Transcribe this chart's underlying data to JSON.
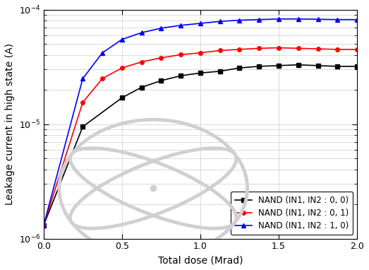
{
  "title": "",
  "xlabel": "Total dose (Mrad)",
  "ylabel": "Leakage current in high state (A)",
  "xlim": [
    0.0,
    2.0
  ],
  "ylim_log_min": -6,
  "ylim_log_max": -4,
  "xticks": [
    0.0,
    0.5,
    1.0,
    1.5,
    2.0
  ],
  "grid": true,
  "series": [
    {
      "label": "NAND (IN1, IN2 : 0, 0)",
      "color": "#000000",
      "marker": "s",
      "x": [
        0.0,
        0.25,
        0.5,
        0.625,
        0.75,
        0.875,
        1.0,
        1.125,
        1.25,
        1.375,
        1.5,
        1.625,
        1.75,
        1.875,
        2.0
      ],
      "y": [
        1.3e-06,
        9.5e-06,
        1.7e-05,
        2.1e-05,
        2.4e-05,
        2.65e-05,
        2.8e-05,
        2.9e-05,
        3.1e-05,
        3.2e-05,
        3.25e-05,
        3.3e-05,
        3.25e-05,
        3.2e-05,
        3.2e-05
      ]
    },
    {
      "label": "NAND (IN1, IN2 : 0, 1)",
      "color": "#ff0000",
      "marker": "o",
      "x": [
        0.0,
        0.25,
        0.375,
        0.5,
        0.625,
        0.75,
        0.875,
        1.0,
        1.125,
        1.25,
        1.375,
        1.5,
        1.625,
        1.75,
        1.875,
        2.0
      ],
      "y": [
        1.3e-06,
        1.55e-05,
        2.5e-05,
        3.1e-05,
        3.5e-05,
        3.8e-05,
        4.05e-05,
        4.2e-05,
        4.4e-05,
        4.5e-05,
        4.6e-05,
        4.65e-05,
        4.6e-05,
        4.55e-05,
        4.5e-05,
        4.5e-05
      ]
    },
    {
      "label": "NAND (IN1, IN2 : 1, 0)",
      "color": "#0000ff",
      "marker": "^",
      "x": [
        0.0,
        0.25,
        0.375,
        0.5,
        0.625,
        0.75,
        0.875,
        1.0,
        1.125,
        1.25,
        1.375,
        1.5,
        1.625,
        1.75,
        1.875,
        2.0
      ],
      "y": [
        1.3e-06,
        2.5e-05,
        4.2e-05,
        5.5e-05,
        6.3e-05,
        6.9e-05,
        7.3e-05,
        7.6e-05,
        7.9e-05,
        8.1e-05,
        8.2e-05,
        8.3e-05,
        8.3e-05,
        8.25e-05,
        8.2e-05,
        8.2e-05
      ]
    }
  ],
  "legend_loc": "lower right",
  "background_color": "#ffffff",
  "linewidth": 1.2,
  "markersize": 4,
  "watermark_color": "#d0d0d0",
  "watermark_linewidth": 3.5
}
